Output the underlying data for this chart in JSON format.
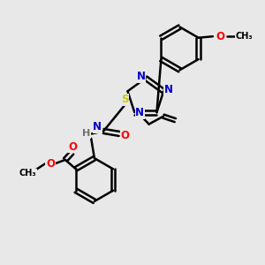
{
  "bg_color": "#e8e8e8",
  "bond_color": "#000000",
  "N_color": "#0000cc",
  "O_color": "#ff0000",
  "S_color": "#cccc00",
  "H_color": "#707070",
  "line_width": 1.8,
  "font_size": 8.5,
  "xlim": [
    0,
    10
  ],
  "ylim": [
    0,
    10
  ]
}
